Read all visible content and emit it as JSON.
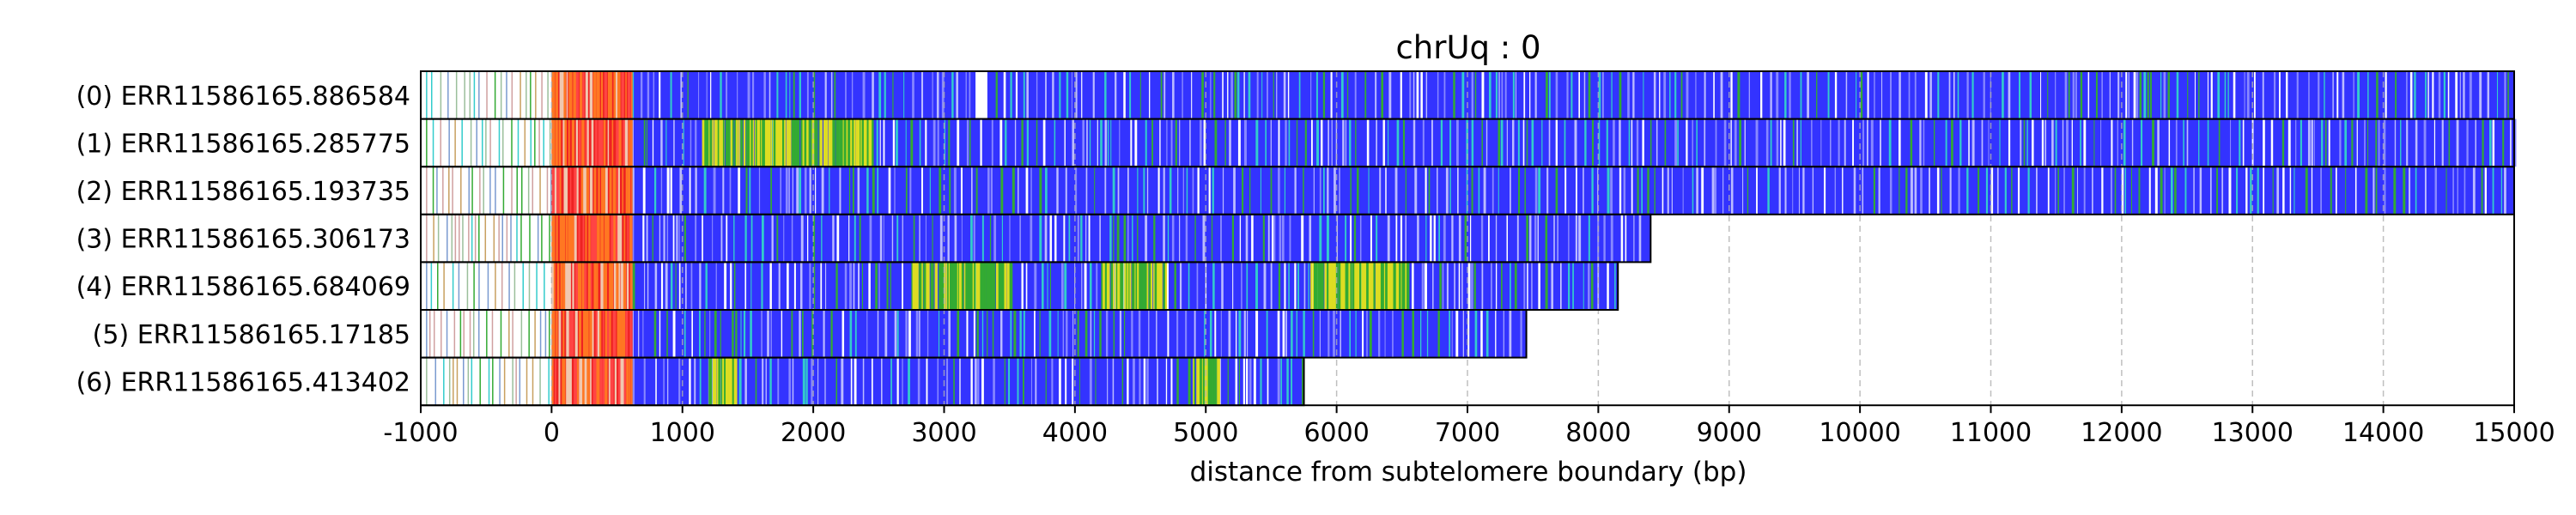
{
  "chart_data": {
    "type": "heatmap",
    "title": "chrUq : 0",
    "xlabel": "distance from subtelomere boundary (bp)",
    "ylabel": "",
    "xlim": [
      -1000,
      15000
    ],
    "x_ticks": [
      -1000,
      0,
      1000,
      2000,
      3000,
      4000,
      5000,
      6000,
      7000,
      8000,
      9000,
      10000,
      11000,
      12000,
      13000,
      14000,
      15000
    ],
    "x_tick_labels": [
      "-1000",
      "0",
      "1000",
      "2000",
      "3000",
      "4000",
      "5000",
      "6000",
      "7000",
      "8000",
      "9000",
      "10000",
      "11000",
      "12000",
      "13000",
      "14000",
      "15000"
    ],
    "grid": "vertical dashed",
    "colors": {
      "blue_region": "#3333ff",
      "red_region": "#ee2222",
      "orange_region": "#ff7722",
      "green_stripe": "#33aa33",
      "yellow_stripe": "#dddd22",
      "cyan_stripe": "#33cccc",
      "white_stripe": "#ffffff",
      "grid": "#b0b0b0",
      "frame": "#000000"
    },
    "reads": [
      {
        "label": "(0) ERR11586165.886584",
        "end": 15000,
        "yellow_stretches": [],
        "white_stretches": [
          [
            3240,
            3330
          ]
        ]
      },
      {
        "label": "(1) ERR11586165.285775",
        "end": 15000,
        "yellow_stretches": [
          [
            1150,
            2450
          ]
        ],
        "white_stretches": []
      },
      {
        "label": "(2) ERR11586165.193735",
        "end": 15000,
        "yellow_stretches": [],
        "white_stretches": []
      },
      {
        "label": "(3) ERR11586165.306173",
        "end": 8400,
        "yellow_stretches": [],
        "white_stretches": []
      },
      {
        "label": "(4) ERR11586165.684069",
        "end": 8150,
        "yellow_stretches": [
          [
            2750,
            3500
          ],
          [
            4200,
            4700
          ],
          [
            5800,
            6550
          ]
        ],
        "white_stretches": []
      },
      {
        "label": "(5) ERR11586165.17185",
        "end": 7450,
        "yellow_stretches": [],
        "white_stretches": []
      },
      {
        "label": "(6) ERR11586165.413402",
        "end": 5750,
        "yellow_stretches": [
          [
            1200,
            1400
          ],
          [
            4900,
            5100
          ]
        ],
        "white_stretches": []
      }
    ],
    "regions": {
      "sparse_start": -1000,
      "sparse_end": 0,
      "red_start": 0,
      "red_end": 620,
      "blue_start": 620
    }
  }
}
